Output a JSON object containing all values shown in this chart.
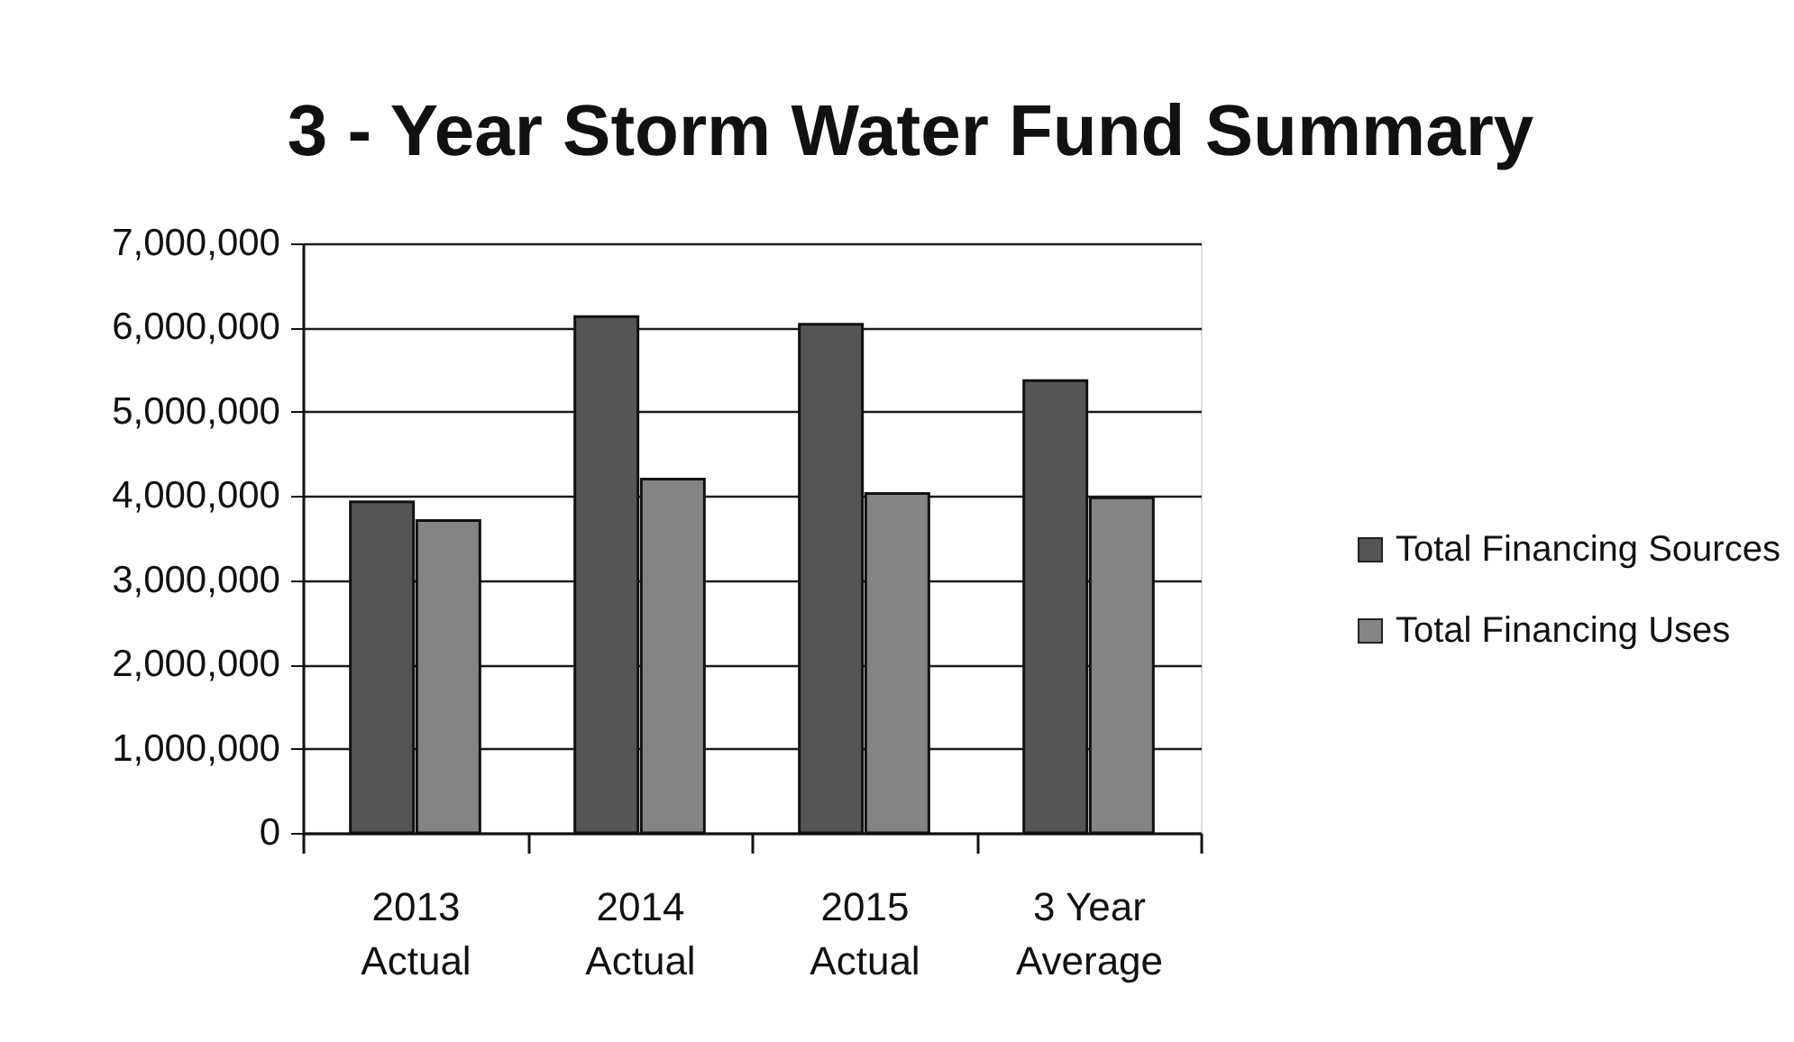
{
  "chart_data": {
    "type": "bar",
    "title": "3 - Year Storm Water Fund Summary",
    "categories": [
      "2013 Actual",
      "2014 Actual",
      "2015 Actual",
      "3 Year Average"
    ],
    "series": [
      {
        "name": "Total Financing Sources",
        "color": "#555555",
        "values": [
          3930000,
          6130000,
          6040000,
          5370000
        ]
      },
      {
        "name": "Total Financing Uses",
        "color": "#848484",
        "values": [
          3710000,
          4200000,
          4030000,
          3980000
        ]
      }
    ],
    "ylim": [
      0,
      7000000
    ],
    "yticks": [
      0,
      {
        "value": 1000000,
        "label": "1,000,000"
      },
      {
        "value": 2000000,
        "label": "2,000,000"
      },
      {
        "value": 3000000,
        "label": "3,000,000"
      },
      {
        "value": 4000000,
        "label": "4,000,000"
      },
      {
        "value": 5000000,
        "label": "5,000,000"
      },
      {
        "value": 6000000,
        "label": "6,000,000"
      },
      {
        "value": 7000000,
        "label": "7,000,000"
      }
    ],
    "grid": "y",
    "legend": "right"
  }
}
